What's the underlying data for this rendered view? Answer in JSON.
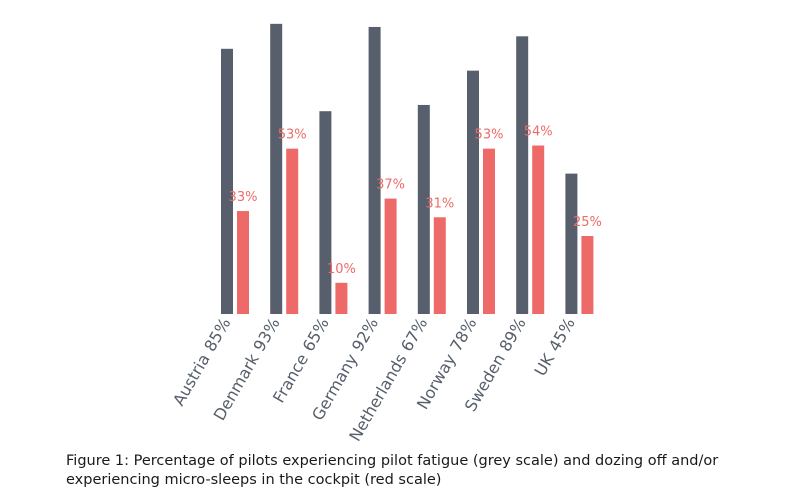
{
  "chart_data": {
    "type": "bar",
    "categories": [
      "Austria",
      "Denmark",
      "France",
      "Germany",
      "Netherlands",
      "Norway",
      "Sweden",
      "UK"
    ],
    "series": [
      {
        "color": "#565f6b",
        "values": [
          85,
          93,
          65,
          92,
          67,
          78,
          89,
          45
        ],
        "labels": [
          "85%",
          "93%",
          "65%",
          "92%",
          "67%",
          "78%",
          "89%",
          "45%"
        ]
      },
      {
        "color": "#ee6a69",
        "values": [
          33,
          53,
          10,
          37,
          31,
          53,
          54,
          25
        ],
        "labels": [
          "33%",
          "53%",
          "10%",
          "37%",
          "31%",
          "53%",
          "54%",
          "25%"
        ]
      }
    ],
    "grid": false,
    "legend": "none",
    "xlabel": "",
    "ylabel": ""
  },
  "caption": {
    "line1": "Figure 1: Percentage of pilots experiencing pilot fatigue (grey scale) and dozing off and/or",
    "line2": "experiencing micro-sleeps in the cockpit (red scale)"
  }
}
